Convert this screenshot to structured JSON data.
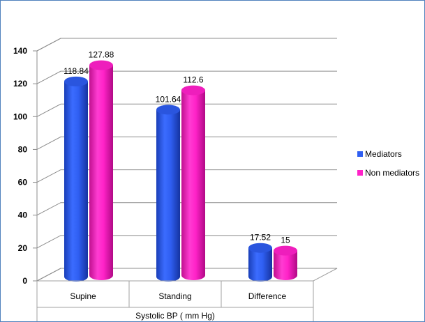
{
  "chart_data": {
    "type": "bar",
    "style": "3d-cylinder",
    "categories": [
      "Supine",
      "Standing",
      "Difference"
    ],
    "series": [
      {
        "name": "Mediators",
        "values": [
          118.84,
          101.64,
          17.52
        ],
        "color": "#2f5ff2"
      },
      {
        "name": "Non mediators",
        "values": [
          127.88,
          112.6,
          15
        ],
        "color": "#ff22c8"
      }
    ],
    "data_labels": [
      [
        "118.84",
        "101.64",
        "17.52"
      ],
      [
        "127.88",
        "112.6",
        "15"
      ]
    ],
    "xlabel": "Systolic BP ( mm Hg)",
    "ylabel": "",
    "ylim": [
      0,
      140
    ],
    "yticks": [
      0,
      20,
      40,
      60,
      80,
      100,
      120,
      140
    ],
    "grid": true,
    "legend_position": "right"
  }
}
